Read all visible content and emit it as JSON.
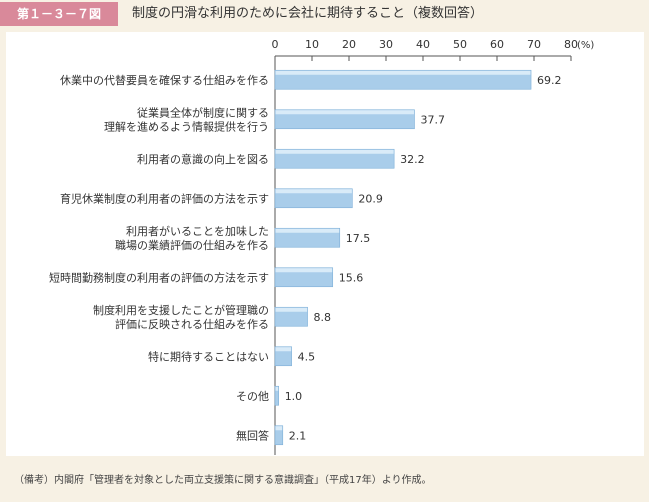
{
  "header": {
    "figure_label": "第１－３－７図",
    "title": "制度の円滑な利用のために会社に期待すること（複数回答）"
  },
  "note": "（備考）内閣府「管理者を対象とした両立支援策に関する意識調査」（平成17年）より作成。",
  "colors": {
    "bar": "#a9cdea",
    "bar_highlight": "#d9ebf8",
    "title_badge": "#d9899a",
    "page_bg": "#f7f1e4"
  },
  "chart_data": {
    "type": "bar",
    "orientation": "horizontal",
    "unit_label": "(%)",
    "xlim": [
      0,
      80
    ],
    "ticks": [
      0,
      10,
      20,
      30,
      40,
      50,
      60,
      70,
      80
    ],
    "categories": [
      [
        "休業中の代替要員を確保する仕組みを作る"
      ],
      [
        "従業員全体が制度に関する",
        "理解を進めるよう情報提供を行う"
      ],
      [
        "利用者の意識の向上を図る"
      ],
      [
        "育児休業制度の利用者の評価の方法を示す"
      ],
      [
        "利用者がいることを加味した",
        "職場の業績評価の仕組みを作る"
      ],
      [
        "短時間勤務制度の利用者の評価の方法を示す"
      ],
      [
        "制度利用を支援したことが管理職の",
        "評価に反映される仕組みを作る"
      ],
      [
        "特に期待することはない"
      ],
      [
        "その他"
      ],
      [
        "無回答"
      ]
    ],
    "values": [
      69.2,
      37.7,
      32.2,
      20.9,
      17.5,
      15.6,
      8.8,
      4.5,
      1.0,
      2.1
    ],
    "value_labels": [
      "69.2",
      "37.7",
      "32.2",
      "20.9",
      "17.5",
      "15.6",
      "8.8",
      "4.5",
      "1.0",
      "2.1"
    ]
  }
}
